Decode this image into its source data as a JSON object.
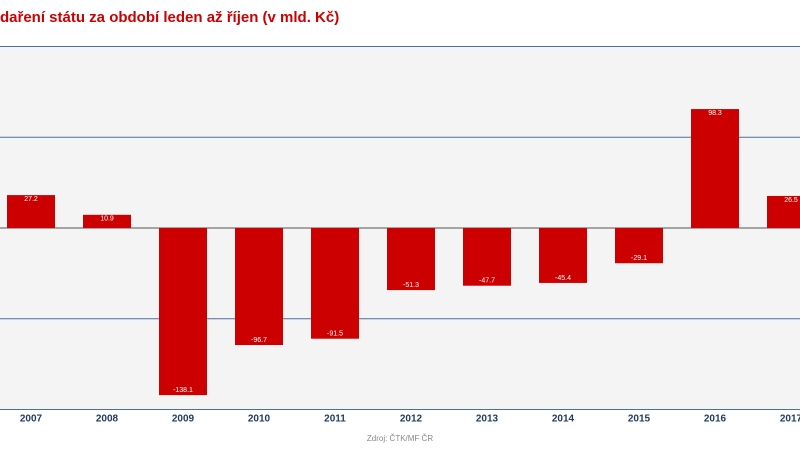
{
  "chart_data": {
    "type": "bar",
    "title": "daření státu za období leden až říjen (v mld. Kč)",
    "categories": [
      "2007",
      "2008",
      "2009",
      "2010",
      "2011",
      "2012",
      "2013",
      "2014",
      "2015",
      "2016",
      "2017"
    ],
    "values": [
      27.2,
      10.9,
      -138.1,
      -96.7,
      -91.5,
      -51.3,
      -47.7,
      -45.4,
      -29.1,
      98.3,
      26.5
    ],
    "color": "#cc0000",
    "ylim": [
      -150,
      150
    ],
    "yticks": [
      -150,
      -75,
      0,
      75,
      150
    ],
    "grid": true,
    "source": "Zdroj: ČTK/MF ČR"
  }
}
